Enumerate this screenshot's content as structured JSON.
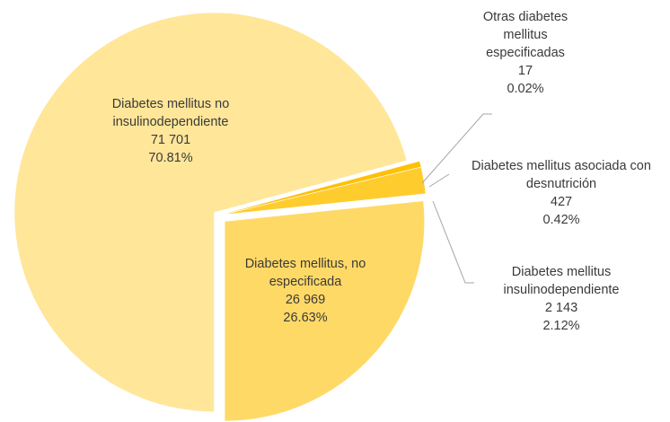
{
  "chart_data": {
    "type": "pie",
    "categories": [
      "Diabetes mellitus no insulinodependiente",
      "Otras diabetes mellitus especificadas",
      "Diabetes mellitus asociada con desnutrición",
      "Diabetes mellitus insulinodependiente",
      "Diabetes mellitus, no especificada"
    ],
    "values": [
      71701,
      17,
      427,
      2143,
      26969
    ],
    "value_labels": [
      "71 701",
      "17",
      "427",
      "2 143",
      "26 969"
    ],
    "percent_labels": [
      "70.81%",
      "0.02%",
      "0.42%",
      "2.12%",
      "26.63%"
    ],
    "colors": [
      "#FFE699",
      "#F2B20C",
      "#FFC000",
      "#FFCC2E",
      "#FFD966"
    ]
  }
}
